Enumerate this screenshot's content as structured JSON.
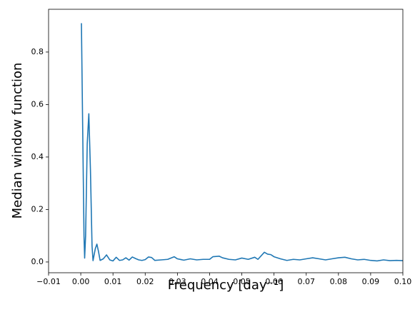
{
  "chart_data": {
    "type": "line",
    "xlabel": "Frequency [day⁻¹]",
    "ylabel": "Median window function",
    "color": "#1f77b4",
    "x": [
      0.0002,
      0.0006,
      0.001,
      0.0012,
      0.0015,
      0.002,
      0.0025,
      0.003,
      0.0035,
      0.0038,
      0.0045,
      0.005,
      0.0055,
      0.006,
      0.007,
      0.008,
      0.009,
      0.01,
      0.011,
      0.012,
      0.013,
      0.014,
      0.015,
      0.016,
      0.017,
      0.018,
      0.019,
      0.02,
      0.021,
      0.022,
      0.023,
      0.025,
      0.027,
      0.029,
      0.03,
      0.032,
      0.034,
      0.036,
      0.038,
      0.04,
      0.041,
      0.043,
      0.044,
      0.046,
      0.048,
      0.05,
      0.052,
      0.054,
      0.055,
      0.057,
      0.058,
      0.059,
      0.06,
      0.062,
      0.064,
      0.066,
      0.068,
      0.07,
      0.072,
      0.074,
      0.076,
      0.078,
      0.08,
      0.082,
      0.084,
      0.086,
      0.088,
      0.09,
      0.092,
      0.094,
      0.096,
      0.098,
      0.1
    ],
    "y": [
      0.91,
      0.5,
      0.1,
      0.015,
      0.1,
      0.45,
      0.565,
      0.35,
      0.06,
      0.005,
      0.05,
      0.068,
      0.04,
      0.006,
      0.012,
      0.027,
      0.008,
      0.004,
      0.018,
      0.006,
      0.008,
      0.016,
      0.007,
      0.019,
      0.013,
      0.008,
      0.006,
      0.009,
      0.019,
      0.017,
      0.006,
      0.008,
      0.01,
      0.02,
      0.012,
      0.007,
      0.012,
      0.008,
      0.01,
      0.01,
      0.02,
      0.022,
      0.016,
      0.01,
      0.008,
      0.015,
      0.01,
      0.018,
      0.01,
      0.037,
      0.03,
      0.028,
      0.02,
      0.012,
      0.006,
      0.01,
      0.008,
      0.012,
      0.016,
      0.012,
      0.008,
      0.012,
      0.016,
      0.018,
      0.012,
      0.008,
      0.01,
      0.006,
      0.004,
      0.008,
      0.005,
      0.006,
      0.005
    ],
    "xlim": [
      -0.01,
      0.1
    ],
    "ylim": [
      -0.041,
      0.963
    ],
    "xticks": [
      {
        "value": -0.01,
        "label": "−0.01"
      },
      {
        "value": 0.0,
        "label": "0.00"
      },
      {
        "value": 0.01,
        "label": "0.01"
      },
      {
        "value": 0.02,
        "label": "0.02"
      },
      {
        "value": 0.03,
        "label": "0.03"
      },
      {
        "value": 0.04,
        "label": "0.04"
      },
      {
        "value": 0.05,
        "label": "0.05"
      },
      {
        "value": 0.06,
        "label": "0.06"
      },
      {
        "value": 0.07,
        "label": "0.07"
      },
      {
        "value": 0.08,
        "label": "0.08"
      },
      {
        "value": 0.09,
        "label": "0.09"
      },
      {
        "value": 0.1,
        "label": "0.10"
      }
    ],
    "yticks": [
      {
        "value": 0,
        "label": "0.0"
      },
      {
        "value": 0.2,
        "label": "0.2"
      },
      {
        "value": 0.4,
        "label": "0.4"
      },
      {
        "value": 0.6,
        "label": "0.6"
      },
      {
        "value": 0.8,
        "label": "0.8"
      }
    ]
  }
}
